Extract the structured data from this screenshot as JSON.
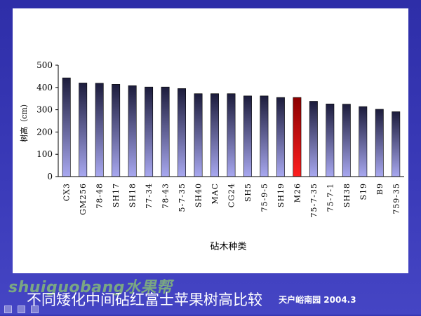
{
  "slide": {
    "title": "不同矮化中间砧红富士苹果树高比较",
    "source": "天户峪南园 2004.3",
    "watermark": "shuiguobang水果帮"
  },
  "icons": [
    "nav-prev-icon",
    "nav-next-icon",
    "nav-menu-icon"
  ],
  "colors": {
    "bar_top": "#1c1c3c",
    "bar_bottom": "#a8a8f0",
    "highlight_top": "#8b0000",
    "highlight_bottom": "#ff2020",
    "slide_background": "#3838b4"
  },
  "chart_data": {
    "type": "bar",
    "title": "",
    "xlabel": "砧木种类",
    "ylabel": "树高（cm）",
    "ylim": [
      0,
      500
    ],
    "yticks": [
      0,
      100,
      200,
      300,
      400,
      500
    ],
    "grid": false,
    "legend": "none",
    "categories": [
      "CX3",
      "GM256",
      "78-48",
      "SH17",
      "SH18",
      "77-34",
      "78-43",
      "5-7-35",
      "SH40",
      "MAC",
      "CG24",
      "SH5",
      "75-9-5",
      "SH19",
      "M26",
      "75-7-35",
      "75-7-1",
      "SH38",
      "S19",
      "B9",
      "759-35"
    ],
    "values": [
      443,
      420,
      419,
      414,
      408,
      402,
      402,
      395,
      372,
      372,
      372,
      362,
      362,
      355,
      355,
      338,
      326,
      325,
      314,
      302,
      291
    ],
    "highlight_category": "M26"
  }
}
